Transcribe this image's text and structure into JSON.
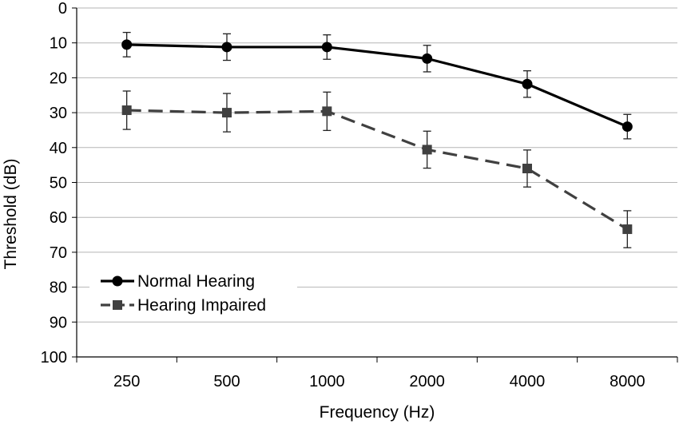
{
  "chart_data": {
    "type": "line",
    "title": "",
    "xlabel": "Frequency (Hz)",
    "ylabel": "Threshold (dB)",
    "categories": [
      "250",
      "500",
      "1000",
      "2000",
      "4000",
      "8000"
    ],
    "ylim": [
      0,
      100
    ],
    "y_inverted": true,
    "yticks": [
      "0",
      "10",
      "20",
      "30",
      "40",
      "50",
      "60",
      "70",
      "80",
      "90",
      "100"
    ],
    "grid": true,
    "legend_position": "bottom-left",
    "series": [
      {
        "name": "Normal Hearing",
        "marker": "circle",
        "line_style": "solid",
        "color": "#000000",
        "values": [
          10.5,
          11.2,
          11.2,
          14.5,
          21.8,
          34.0
        ],
        "error": [
          3.5,
          3.8,
          3.5,
          3.8,
          3.8,
          3.5
        ]
      },
      {
        "name": "Hearing Impaired",
        "marker": "square",
        "line_style": "dashed",
        "color": "#404040",
        "values": [
          29.3,
          30.0,
          29.6,
          40.6,
          46.0,
          63.4
        ],
        "error": [
          5.5,
          5.5,
          5.5,
          5.3,
          5.3,
          5.3
        ]
      }
    ]
  }
}
